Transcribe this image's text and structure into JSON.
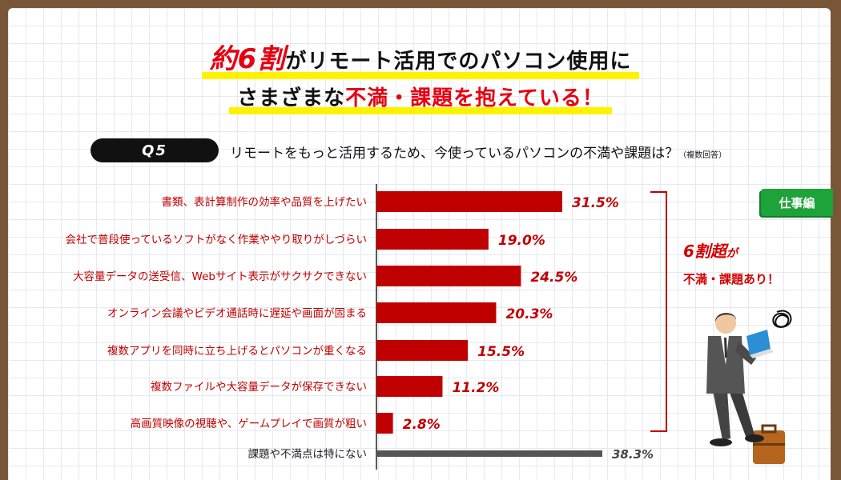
{
  "headline": {
    "line1_highlight": "約6割",
    "line1_rest": "がリモート活用でのパソコン使用に",
    "line2_start": "さまざまな",
    "line2_highlight": "不満・課題を抱えている！"
  },
  "question": {
    "tag": "Q5",
    "text": "リモートをもっと活用するため、今使っているパソコンの不満や課題は？",
    "note": "（複数回答）"
  },
  "badge": "仕事編",
  "callout": {
    "line1_main": "6割超",
    "line1_suffix": "が",
    "line2": "不満・課題あり！"
  },
  "chart_data": {
    "type": "bar",
    "orientation": "horizontal",
    "unit": "%",
    "categories": [
      "書類、表計算制作の効率や品質を上げたい",
      "会社で普段使っているソフトがなく作業ややり取りがしづらい",
      "大容量データの送受信、Webサイト表示がサクサクできない",
      "オンライン会議やビデオ通話時に遅延や画面が固まる",
      "複数アプリを同時に立ち上げるとパソコンが重くなる",
      "複数ファイルや大容量データが保存できない",
      "高画質映像の視聴や、ゲームプレイで画質が粗い",
      "課題や不満点は特にない"
    ],
    "values": [
      31.5,
      19.0,
      24.5,
      20.3,
      15.5,
      11.2,
      2.8,
      38.3
    ],
    "value_labels": [
      "31.5%",
      "19.0%",
      "24.5%",
      "20.3%",
      "15.5%",
      "11.2%",
      "2.8%",
      "38.3%"
    ],
    "colors": [
      "#c00000",
      "#c00000",
      "#c00000",
      "#c00000",
      "#c00000",
      "#c00000",
      "#c00000",
      "#555555"
    ],
    "xlim": [
      0,
      38.3
    ]
  }
}
